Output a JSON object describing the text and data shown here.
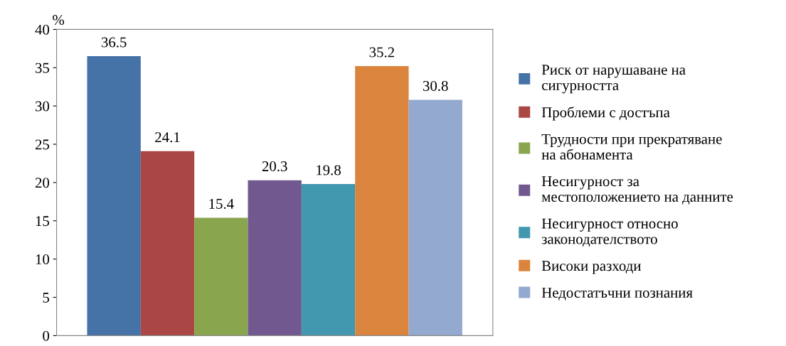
{
  "chart_data": {
    "type": "bar",
    "ylabel": "%",
    "categories": [
      null
    ],
    "series": [
      {
        "name": "Риск от нарушаване на\nсигурността",
        "color": "#4572a7",
        "values": [
          36.5
        ]
      },
      {
        "name": "Проблеми с достъпа",
        "color": "#aa4643",
        "values": [
          24.1
        ]
      },
      {
        "name": "Трудности при прекратяване\nна абонамента",
        "color": "#89a54e",
        "values": [
          15.4
        ]
      },
      {
        "name": "Несигурност за\nместоположението на данните",
        "color": "#71588f",
        "values": [
          20.3
        ]
      },
      {
        "name": "Несигурност относно\nзаконодателството",
        "color": "#4198af",
        "values": [
          19.8
        ]
      },
      {
        "name": "Високи разходи",
        "color": "#db843d",
        "values": [
          35.2
        ]
      },
      {
        "name": "Недостатъчни познания",
        "color": "#93a9cf",
        "values": [
          30.8
        ]
      }
    ],
    "ylim": [
      0,
      40
    ],
    "yticks": [
      0,
      5,
      10,
      15,
      20,
      25,
      30,
      35,
      40
    ],
    "data_labels": true,
    "grid": false,
    "legend": "right"
  }
}
